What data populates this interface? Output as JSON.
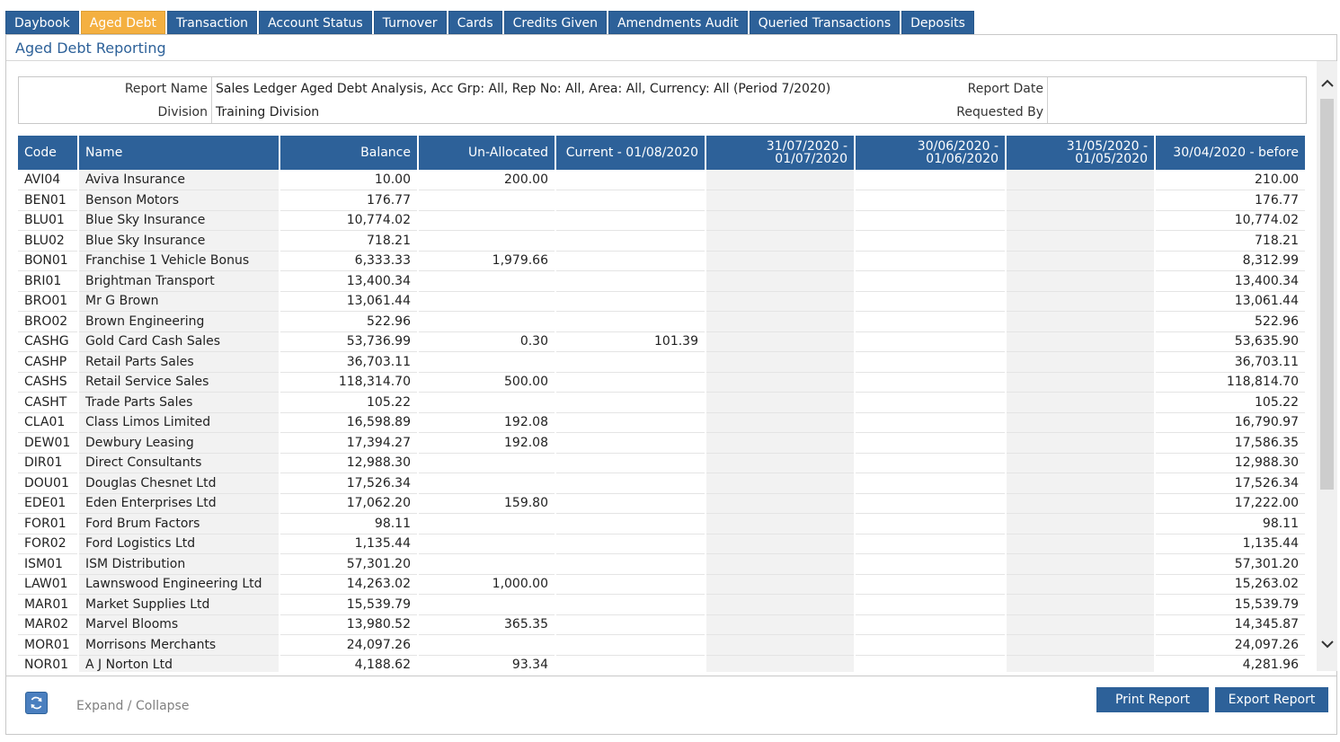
{
  "tabs": [
    "Daybook",
    "Aged Debt",
    "Transaction",
    "Account Status",
    "Turnover",
    "Cards",
    "Credits Given",
    "Amendments Audit",
    "Queried Transactions",
    "Deposits"
  ],
  "active_tab": "Aged Debt",
  "panel_title": "Aged Debt Reporting",
  "info": {
    "report_name_label": "Report Name",
    "report_name": "Sales Ledger Aged Debt Analysis, Acc Grp: All, Rep No: All, Area: All, Currency: All (Period 7/2020)",
    "division_label": "Division",
    "division": "Training Division",
    "report_date_label": "Report Date",
    "report_date": "",
    "requested_by_label": "Requested By",
    "requested_by": ""
  },
  "columns": {
    "code": "Code",
    "name": "Name",
    "balance": "Balance",
    "unallocated": "Un-Allocated",
    "current": "Current - 01/08/2020",
    "p1_top": "31/07/2020 -",
    "p1_bottom": "01/07/2020",
    "p2_top": "30/06/2020 -",
    "p2_bottom": "01/06/2020",
    "p3_top": "31/05/2020 -",
    "p3_bottom": "01/05/2020",
    "before": "30/04/2020 - before"
  },
  "rows": [
    [
      "AVI04",
      "Aviva Insurance",
      "10.00",
      "200.00",
      "",
      "",
      "",
      "",
      "210.00"
    ],
    [
      "BEN01",
      "Benson Motors",
      "176.77",
      "",
      "",
      "",
      "",
      "",
      "176.77"
    ],
    [
      "BLU01",
      "Blue Sky Insurance",
      "10,774.02",
      "",
      "",
      "",
      "",
      "",
      "10,774.02"
    ],
    [
      "BLU02",
      "Blue Sky Insurance",
      "718.21",
      "",
      "",
      "",
      "",
      "",
      "718.21"
    ],
    [
      "BON01",
      "Franchise 1 Vehicle Bonus",
      "6,333.33",
      "1,979.66",
      "",
      "",
      "",
      "",
      "8,312.99"
    ],
    [
      "BRI01",
      "Brightman Transport",
      "13,400.34",
      "",
      "",
      "",
      "",
      "",
      "13,400.34"
    ],
    [
      "BRO01",
      "Mr G Brown",
      "13,061.44",
      "",
      "",
      "",
      "",
      "",
      "13,061.44"
    ],
    [
      "BRO02",
      "Brown Engineering",
      "522.96",
      "",
      "",
      "",
      "",
      "",
      "522.96"
    ],
    [
      "CASHG",
      "Gold Card Cash Sales",
      "53,736.99",
      "0.30",
      "101.39",
      "",
      "",
      "",
      "53,635.90"
    ],
    [
      "CASHP",
      "Retail Parts Sales",
      "36,703.11",
      "",
      "",
      "",
      "",
      "",
      "36,703.11"
    ],
    [
      "CASHS",
      "Retail Service Sales",
      "118,314.70",
      "500.00",
      "",
      "",
      "",
      "",
      "118,814.70"
    ],
    [
      "CASHT",
      "Trade Parts Sales",
      "105.22",
      "",
      "",
      "",
      "",
      "",
      "105.22"
    ],
    [
      "CLA01",
      "Class Limos Limited",
      "16,598.89",
      "192.08",
      "",
      "",
      "",
      "",
      "16,790.97"
    ],
    [
      "DEW01",
      "Dewbury Leasing",
      "17,394.27",
      "192.08",
      "",
      "",
      "",
      "",
      "17,586.35"
    ],
    [
      "DIR01",
      "Direct Consultants",
      "12,988.30",
      "",
      "",
      "",
      "",
      "",
      "12,988.30"
    ],
    [
      "DOU01",
      "Douglas Chesnet Ltd",
      "17,526.34",
      "",
      "",
      "",
      "",
      "",
      "17,526.34"
    ],
    [
      "EDE01",
      "Eden Enterprises Ltd",
      "17,062.20",
      "159.80",
      "",
      "",
      "",
      "",
      "17,222.00"
    ],
    [
      "FOR01",
      "Ford Brum Factors",
      "98.11",
      "",
      "",
      "",
      "",
      "",
      "98.11"
    ],
    [
      "FOR02",
      "Ford Logistics Ltd",
      "1,135.44",
      "",
      "",
      "",
      "",
      "",
      "1,135.44"
    ],
    [
      "ISM01",
      "ISM Distribution",
      "57,301.20",
      "",
      "",
      "",
      "",
      "",
      "57,301.20"
    ],
    [
      "LAW01",
      "Lawnswood Engineering Ltd",
      "14,263.02",
      "1,000.00",
      "",
      "",
      "",
      "",
      "15,263.02"
    ],
    [
      "MAR01",
      "Market Supplies Ltd",
      "15,539.79",
      "",
      "",
      "",
      "",
      "",
      "15,539.79"
    ],
    [
      "MAR02",
      "Marvel Blooms",
      "13,980.52",
      "365.35",
      "",
      "",
      "",
      "",
      "14,345.87"
    ],
    [
      "MOR01",
      "Morrisons Merchants",
      "24,097.26",
      "",
      "",
      "",
      "",
      "",
      "24,097.26"
    ],
    [
      "NOR01",
      "A J Norton Ltd",
      "4,188.62",
      "93.34",
      "",
      "",
      "",
      "",
      "4,281.96"
    ]
  ],
  "footer": {
    "expand_collapse": "Expand / Collapse",
    "print_button": "Print Report",
    "export_button": "Export Report"
  },
  "icons": {
    "refresh": "refresh-icon",
    "scroll_up": "chevron-up-icon",
    "scroll_down": "chevron-down-icon"
  },
  "colors": {
    "accent": "#2d6199",
    "active_tab": "#f4b041",
    "row_shade": "#f2f2f2"
  }
}
